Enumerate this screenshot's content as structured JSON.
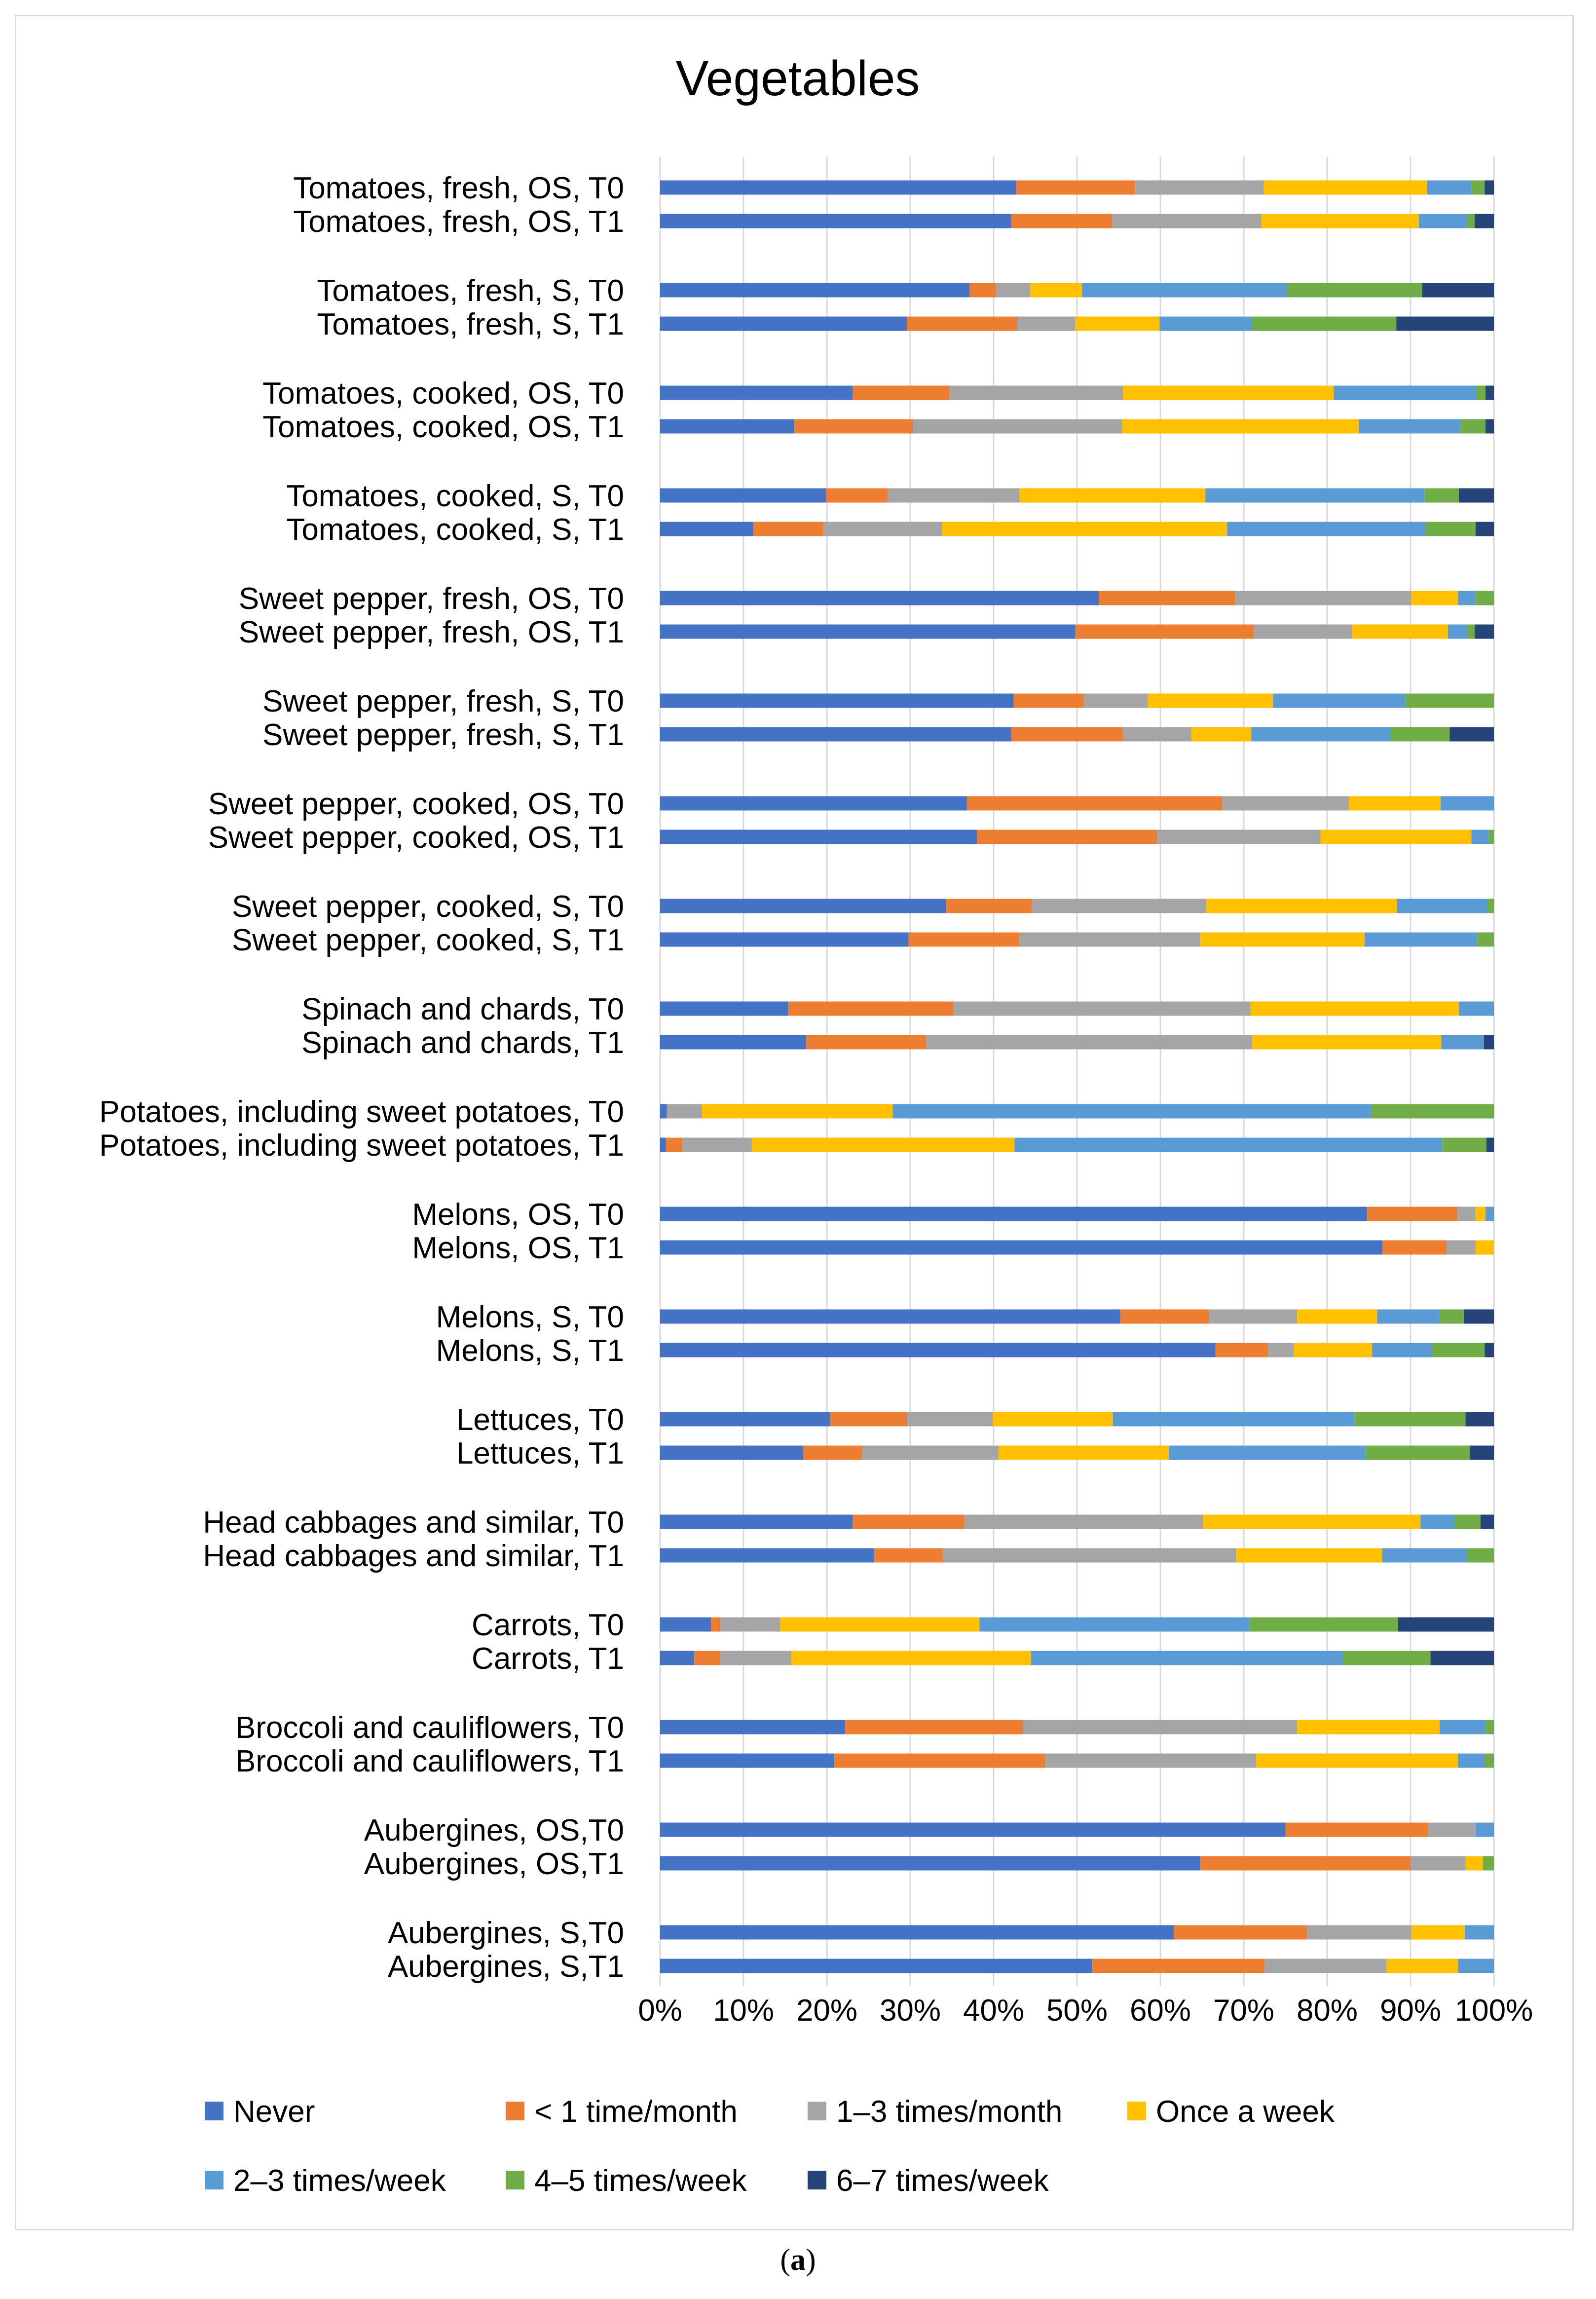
{
  "chart_data": {
    "type": "bar",
    "orientation": "horizontal",
    "stacked": "percent",
    "title": "Vegetables",
    "xlim": [
      0,
      100
    ],
    "xticks": [
      "0%",
      "10%",
      "20%",
      "30%",
      "40%",
      "50%",
      "60%",
      "70%",
      "80%",
      "90%",
      "100%"
    ],
    "grid": true,
    "legend_position": "bottom",
    "categories": [
      "Tomatoes, fresh, OS, T0",
      "Tomatoes, fresh, OS, T1",
      "Tomatoes, fresh, S, T0",
      "Tomatoes, fresh, S, T1",
      "Tomatoes, cooked, OS, T0",
      "Tomatoes, cooked, OS, T1",
      "Tomatoes, cooked, S, T0",
      "Tomatoes, cooked, S, T1",
      "Sweet pepper, fresh, OS, T0",
      "Sweet pepper, fresh, OS, T1",
      "Sweet pepper, fresh, S, T0",
      "Sweet pepper, fresh, S, T1",
      "Sweet pepper, cooked, OS, T0",
      "Sweet pepper, cooked, OS, T1",
      "Sweet pepper, cooked, S, T0",
      "Sweet pepper, cooked, S, T1",
      "Spinach and chards, T0",
      "Spinach and chards, T1",
      "Potatoes, including sweet potatoes, T0",
      "Potatoes, including sweet potatoes, T1",
      "Melons, OS, T0",
      "Melons, OS, T1",
      "Melons, S, T0",
      "Melons, S, T1",
      "Lettuces, T0",
      "Lettuces, T1",
      "Head cabbages and similar, T0",
      "Head cabbages and similar, T1",
      "Carrots, T0",
      "Carrots, T1",
      "Broccoli and cauliflowers, T0",
      "Broccoli and cauliflowers, T1",
      "Aubergines, OS,T0",
      "Aubergines, OS,T1",
      "Aubergines, S,T0",
      "Aubergines, S,T1"
    ],
    "series": [
      {
        "name": "Never",
        "color": "#4472c4",
        "values": [
          42.7,
          42.1,
          37.1,
          29.6,
          23.1,
          16.1,
          19.9,
          11.2,
          52.6,
          49.8,
          42.4,
          42.1,
          36.8,
          38.0,
          34.3,
          29.8,
          15.4,
          17.5,
          0.8,
          0.7,
          84.8,
          86.8,
          55.2,
          66.6,
          20.4,
          17.2,
          23.1,
          25.7,
          6.1,
          4.1,
          22.2,
          20.9,
          75.0,
          64.8,
          61.6,
          52.0
        ]
      },
      {
        "name": "< 1 time/month",
        "color": "#ed7d31",
        "values": [
          14.3,
          12.1,
          3.2,
          13.2,
          11.6,
          14.2,
          7.4,
          8.4,
          16.4,
          21.4,
          8.4,
          13.4,
          30.6,
          21.6,
          10.3,
          13.3,
          19.8,
          14.4,
          0.0,
          2.0,
          10.8,
          7.7,
          10.6,
          6.3,
          9.2,
          7.0,
          13.4,
          8.2,
          1.1,
          3.1,
          21.3,
          25.3,
          17.1,
          25.2,
          16.0,
          20.7
        ]
      },
      {
        "name": "1–3 times/month",
        "color": "#a5a5a5",
        "values": [
          15.4,
          17.9,
          4.1,
          7.0,
          20.8,
          25.1,
          15.8,
          14.2,
          21.1,
          11.8,
          7.7,
          8.2,
          15.2,
          19.6,
          20.9,
          21.7,
          35.6,
          39.1,
          4.2,
          8.3,
          2.2,
          3.5,
          10.6,
          3.1,
          10.3,
          16.4,
          28.6,
          35.2,
          7.2,
          8.5,
          32.9,
          25.3,
          5.7,
          6.6,
          12.5,
          14.7
        ]
      },
      {
        "name": "Once a week",
        "color": "#ffc000",
        "values": [
          19.6,
          18.9,
          6.2,
          10.1,
          25.3,
          28.4,
          22.3,
          34.2,
          5.6,
          11.5,
          15.0,
          7.2,
          11.0,
          18.1,
          22.9,
          19.7,
          25.0,
          22.7,
          22.9,
          31.5,
          1.2,
          2.2,
          9.6,
          9.4,
          14.4,
          20.4,
          26.1,
          17.5,
          23.9,
          28.8,
          17.1,
          24.2,
          0.0,
          2.1,
          6.4,
          8.6
        ]
      },
      {
        "name": "2–3 times/week",
        "color": "#5b9bd5",
        "values": [
          5.3,
          5.8,
          24.6,
          11.1,
          17.1,
          12.2,
          26.3,
          23.8,
          2.1,
          2.3,
          15.9,
          16.7,
          6.4,
          2.1,
          10.8,
          13.5,
          4.2,
          5.1,
          57.4,
          51.3,
          1.0,
          0.0,
          7.5,
          7.2,
          29.0,
          23.6,
          4.1,
          10.2,
          32.4,
          37.4,
          5.5,
          3.2,
          2.2,
          0.0,
          3.5,
          4.3
        ]
      },
      {
        "name": "4–5 times/week",
        "color": "#70ad47",
        "values": [
          1.6,
          0.9,
          16.2,
          17.3,
          1.1,
          3.0,
          4.1,
          6.0,
          2.2,
          0.9,
          10.6,
          7.1,
          0.0,
          0.6,
          0.8,
          2.0,
          0.0,
          0.0,
          14.7,
          5.3,
          0.0,
          0.0,
          2.9,
          6.3,
          13.3,
          12.5,
          3.1,
          3.2,
          17.8,
          10.5,
          1.0,
          1.1,
          0.0,
          1.3,
          0.0,
          0.0
        ]
      },
      {
        "name": "6–7 times/week",
        "color": "#264478",
        "values": [
          1.1,
          2.3,
          8.6,
          11.7,
          1.0,
          1.0,
          4.2,
          2.2,
          0.0,
          2.3,
          0.0,
          5.3,
          0.0,
          0.0,
          0.0,
          0.0,
          0.0,
          1.2,
          0.0,
          0.9,
          0.0,
          0.0,
          3.6,
          1.1,
          3.4,
          2.9,
          1.6,
          0.0,
          11.5,
          7.6,
          0.0,
          0.0,
          0.0,
          0.0,
          0.0,
          0.0
        ]
      }
    ]
  },
  "caption": {
    "letter": "a"
  }
}
